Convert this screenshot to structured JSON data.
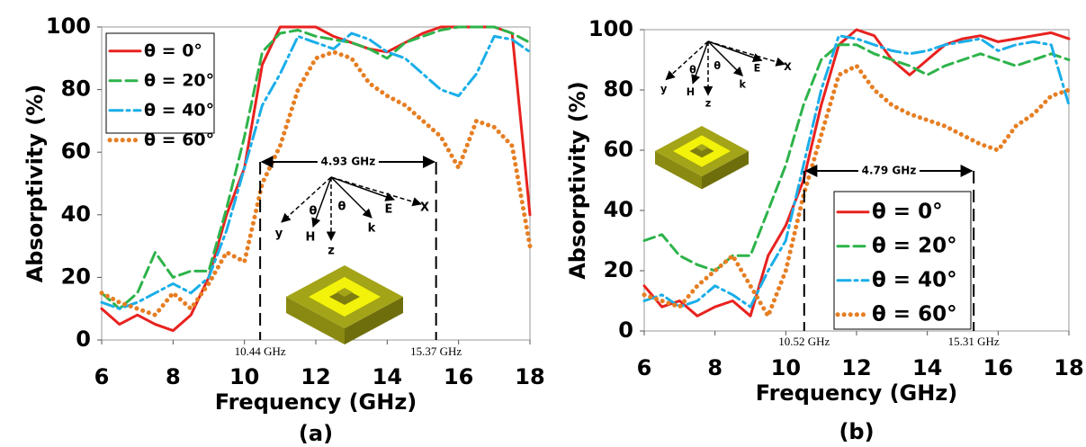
{
  "chart_data": [
    {
      "type": "line",
      "caption": "(a)",
      "xlabel": "Frequency (GHz)",
      "ylabel": "Absorptivity (%)",
      "x": [
        6,
        6.5,
        7,
        7.5,
        8,
        8.5,
        9,
        9.5,
        10,
        10.5,
        11,
        11.5,
        12,
        12.5,
        13,
        13.5,
        14,
        14.5,
        15,
        15.5,
        16,
        16.5,
        17,
        17.5,
        18
      ],
      "series": [
        {
          "name": "θ = 0°",
          "color": "#e8221f",
          "style": "solid",
          "values": [
            10,
            5,
            8,
            5,
            3,
            8,
            20,
            40,
            55,
            88,
            100,
            100,
            100,
            97,
            95,
            93,
            92,
            95,
            98,
            100,
            100,
            100,
            100,
            98,
            40
          ]
        },
        {
          "name": "θ = 20°",
          "color": "#2db34a",
          "style": "dashed",
          "values": [
            15,
            10,
            15,
            28,
            20,
            22,
            22,
            42,
            65,
            92,
            98,
            99,
            97,
            96,
            95,
            93,
            90,
            95,
            97,
            99,
            100,
            100,
            100,
            98,
            95
          ]
        },
        {
          "name": "θ = 40°",
          "color": "#1aaee8",
          "style": "dashdot",
          "values": [
            12,
            10,
            12,
            15,
            18,
            15,
            20,
            35,
            55,
            75,
            85,
            97,
            95,
            93,
            98,
            96,
            92,
            90,
            85,
            80,
            78,
            85,
            97,
            96,
            92
          ]
        },
        {
          "name": "θ = 60°",
          "color": "#e67e22",
          "style": "dotted",
          "values": [
            15,
            12,
            10,
            8,
            15,
            10,
            18,
            28,
            25,
            50,
            62,
            80,
            90,
            92,
            90,
            82,
            78,
            75,
            70,
            65,
            55,
            70,
            68,
            62,
            30
          ]
        }
      ],
      "xlim": [
        6,
        18
      ],
      "ylim": [
        0,
        100
      ],
      "xticks": [
        6,
        8,
        10,
        12,
        14,
        16,
        18
      ],
      "yticks": [
        0,
        20,
        40,
        60,
        80,
        100
      ],
      "legend": "upper left",
      "markers": [
        {
          "value": 10.44,
          "label": "10.44 GHz"
        },
        {
          "value": 15.37,
          "label": "15.37 GHz"
        }
      ],
      "bandwidth_label": "4.93 GHz",
      "inset_labels": [
        "E",
        "X",
        "y",
        "H",
        "θ",
        "θ",
        "z",
        "k"
      ]
    },
    {
      "type": "line",
      "caption": "(b)",
      "xlabel": "Frequency (GHz)",
      "ylabel": "Absorptivity (%)",
      "x": [
        6,
        6.5,
        7,
        7.5,
        8,
        8.5,
        9,
        9.5,
        10,
        10.5,
        11,
        11.5,
        12,
        12.5,
        13,
        13.5,
        14,
        14.5,
        15,
        15.5,
        16,
        16.5,
        17,
        17.5,
        18
      ],
      "series": [
        {
          "name": "θ = 0°",
          "color": "#e8221f",
          "style": "solid",
          "values": [
            15,
            8,
            10,
            5,
            8,
            10,
            5,
            25,
            35,
            50,
            75,
            95,
            100,
            98,
            90,
            85,
            90,
            95,
            97,
            98,
            96,
            97,
            98,
            99,
            97
          ]
        },
        {
          "name": "θ = 20°",
          "color": "#2db34a",
          "style": "dashed",
          "values": [
            30,
            32,
            25,
            22,
            20,
            25,
            25,
            40,
            55,
            75,
            90,
            95,
            95,
            92,
            90,
            88,
            85,
            88,
            90,
            92,
            90,
            88,
            90,
            92,
            90
          ]
        },
        {
          "name": "θ = 40°",
          "color": "#1aaee8",
          "style": "dashdot",
          "values": [
            10,
            12,
            8,
            10,
            15,
            12,
            8,
            20,
            30,
            55,
            80,
            98,
            97,
            95,
            93,
            92,
            93,
            95,
            96,
            97,
            93,
            95,
            96,
            95,
            75
          ]
        },
        {
          "name": "θ = 60°",
          "color": "#e67e22",
          "style": "dotted",
          "values": [
            12,
            10,
            8,
            15,
            20,
            25,
            15,
            5,
            20,
            45,
            65,
            85,
            88,
            80,
            75,
            72,
            70,
            68,
            65,
            62,
            60,
            68,
            72,
            78,
            80
          ]
        }
      ],
      "xlim": [
        6,
        18
      ],
      "ylim": [
        0,
        100
      ],
      "xticks": [
        6,
        8,
        10,
        12,
        14,
        16,
        18
      ],
      "yticks": [
        0,
        20,
        40,
        60,
        80,
        100
      ],
      "legend": "lower right",
      "markers": [
        {
          "value": 10.52,
          "label": "10.52 GHz"
        },
        {
          "value": 15.31,
          "label": "15.31 GHz"
        }
      ],
      "bandwidth_label": "4.79 GHz",
      "inset_labels": [
        "E",
        "X",
        "y",
        "H",
        "θ",
        "θ",
        "z",
        "k"
      ]
    }
  ]
}
